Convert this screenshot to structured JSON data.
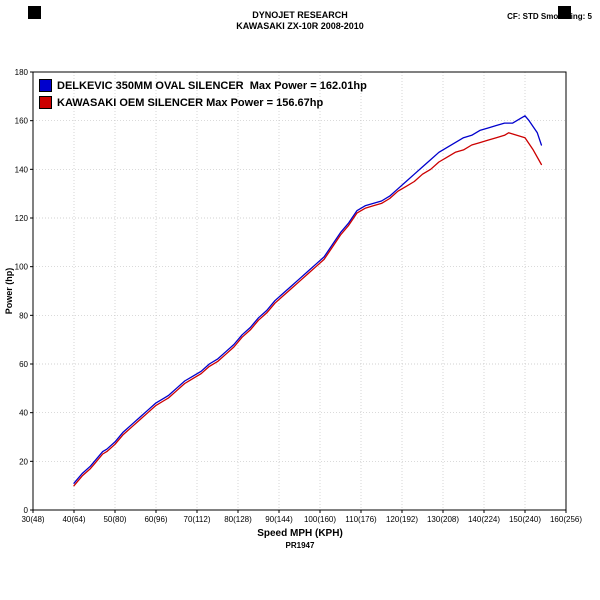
{
  "header": {
    "line1": "DYNOJET RESEARCH",
    "line2": "KAWASAKI ZX-10R 2008-2010",
    "cf": "CF: STD  Smoothing: 5"
  },
  "footer": {
    "ref": "PR1947"
  },
  "chart_data": {
    "type": "line",
    "title": "DYNOJET RESEARCH  KAWASAKI ZX-10R 2008-2010",
    "xlabel": "Speed MPH (KPH)",
    "ylabel": "Power (hp)",
    "xlim": [
      30,
      160
    ],
    "ylim": [
      0,
      180
    ],
    "grid": true,
    "legend_position": "top-left",
    "x_ticks": [
      {
        "value": 30,
        "label": "30(48)"
      },
      {
        "value": 40,
        "label": "40(64)"
      },
      {
        "value": 50,
        "label": "50(80)"
      },
      {
        "value": 60,
        "label": "60(96)"
      },
      {
        "value": 70,
        "label": "70(112)"
      },
      {
        "value": 80,
        "label": "80(128)"
      },
      {
        "value": 90,
        "label": "90(144)"
      },
      {
        "value": 100,
        "label": "100(160)"
      },
      {
        "value": 110,
        "label": "110(176)"
      },
      {
        "value": 120,
        "label": "120(192)"
      },
      {
        "value": 130,
        "label": "130(208)"
      },
      {
        "value": 140,
        "label": "140(224)"
      },
      {
        "value": 150,
        "label": "150(240)"
      },
      {
        "value": 160,
        "label": "160(256)"
      }
    ],
    "y_ticks": [
      0,
      20,
      40,
      60,
      80,
      100,
      120,
      140,
      160,
      180
    ],
    "series": [
      {
        "name": "DELKEVIC 350MM OVAL SILENCER  Max Power = 162.01hp",
        "max_power_hp": 162.01,
        "color": "#0000cd",
        "points": [
          [
            40,
            11
          ],
          [
            42,
            15
          ],
          [
            44,
            18
          ],
          [
            45,
            20
          ],
          [
            47,
            24
          ],
          [
            48,
            25
          ],
          [
            50,
            28
          ],
          [
            52,
            32
          ],
          [
            54,
            35
          ],
          [
            56,
            38
          ],
          [
            58,
            41
          ],
          [
            60,
            44
          ],
          [
            62,
            46
          ],
          [
            63,
            47
          ],
          [
            65,
            50
          ],
          [
            67,
            53
          ],
          [
            69,
            55
          ],
          [
            71,
            57
          ],
          [
            73,
            60
          ],
          [
            75,
            62
          ],
          [
            77,
            65
          ],
          [
            79,
            68
          ],
          [
            81,
            72
          ],
          [
            83,
            75
          ],
          [
            85,
            79
          ],
          [
            87,
            82
          ],
          [
            89,
            86
          ],
          [
            91,
            89
          ],
          [
            93,
            92
          ],
          [
            95,
            95
          ],
          [
            97,
            98
          ],
          [
            99,
            101
          ],
          [
            101,
            104
          ],
          [
            103,
            109
          ],
          [
            105,
            114
          ],
          [
            107,
            118
          ],
          [
            109,
            123
          ],
          [
            111,
            125
          ],
          [
            113,
            126
          ],
          [
            115,
            127
          ],
          [
            117,
            129
          ],
          [
            119,
            132
          ],
          [
            121,
            135
          ],
          [
            123,
            138
          ],
          [
            125,
            141
          ],
          [
            127,
            144
          ],
          [
            129,
            147
          ],
          [
            131,
            149
          ],
          [
            133,
            151
          ],
          [
            135,
            153
          ],
          [
            137,
            154
          ],
          [
            139,
            156
          ],
          [
            141,
            157
          ],
          [
            143,
            158
          ],
          [
            145,
            159
          ],
          [
            147,
            159
          ],
          [
            149,
            161
          ],
          [
            150,
            162
          ],
          [
            151,
            160
          ],
          [
            153,
            155
          ],
          [
            154,
            150
          ]
        ]
      },
      {
        "name": "KAWASAKI OEM SILENCER Max Power = 156.67hp",
        "max_power_hp": 156.67,
        "color": "#cc0000",
        "points": [
          [
            40,
            10
          ],
          [
            42,
            14
          ],
          [
            44,
            17
          ],
          [
            45,
            19
          ],
          [
            47,
            23
          ],
          [
            48,
            24
          ],
          [
            50,
            27
          ],
          [
            52,
            31
          ],
          [
            54,
            34
          ],
          [
            56,
            37
          ],
          [
            58,
            40
          ],
          [
            60,
            43
          ],
          [
            62,
            45
          ],
          [
            63,
            46
          ],
          [
            65,
            49
          ],
          [
            67,
            52
          ],
          [
            69,
            54
          ],
          [
            71,
            56
          ],
          [
            73,
            59
          ],
          [
            75,
            61
          ],
          [
            77,
            64
          ],
          [
            79,
            67
          ],
          [
            81,
            71
          ],
          [
            83,
            74
          ],
          [
            85,
            78
          ],
          [
            87,
            81
          ],
          [
            89,
            85
          ],
          [
            91,
            88
          ],
          [
            93,
            91
          ],
          [
            95,
            94
          ],
          [
            97,
            97
          ],
          [
            99,
            100
          ],
          [
            101,
            103
          ],
          [
            103,
            108
          ],
          [
            105,
            113
          ],
          [
            107,
            117
          ],
          [
            109,
            122
          ],
          [
            111,
            124
          ],
          [
            113,
            125
          ],
          [
            115,
            126
          ],
          [
            117,
            128
          ],
          [
            119,
            131
          ],
          [
            121,
            133
          ],
          [
            123,
            135
          ],
          [
            125,
            138
          ],
          [
            127,
            140
          ],
          [
            129,
            143
          ],
          [
            131,
            145
          ],
          [
            133,
            147
          ],
          [
            135,
            148
          ],
          [
            137,
            150
          ],
          [
            139,
            151
          ],
          [
            141,
            152
          ],
          [
            143,
            153
          ],
          [
            145,
            154
          ],
          [
            146,
            155
          ],
          [
            148,
            154
          ],
          [
            150,
            153
          ],
          [
            152,
            148
          ],
          [
            154,
            142
          ]
        ]
      }
    ]
  }
}
